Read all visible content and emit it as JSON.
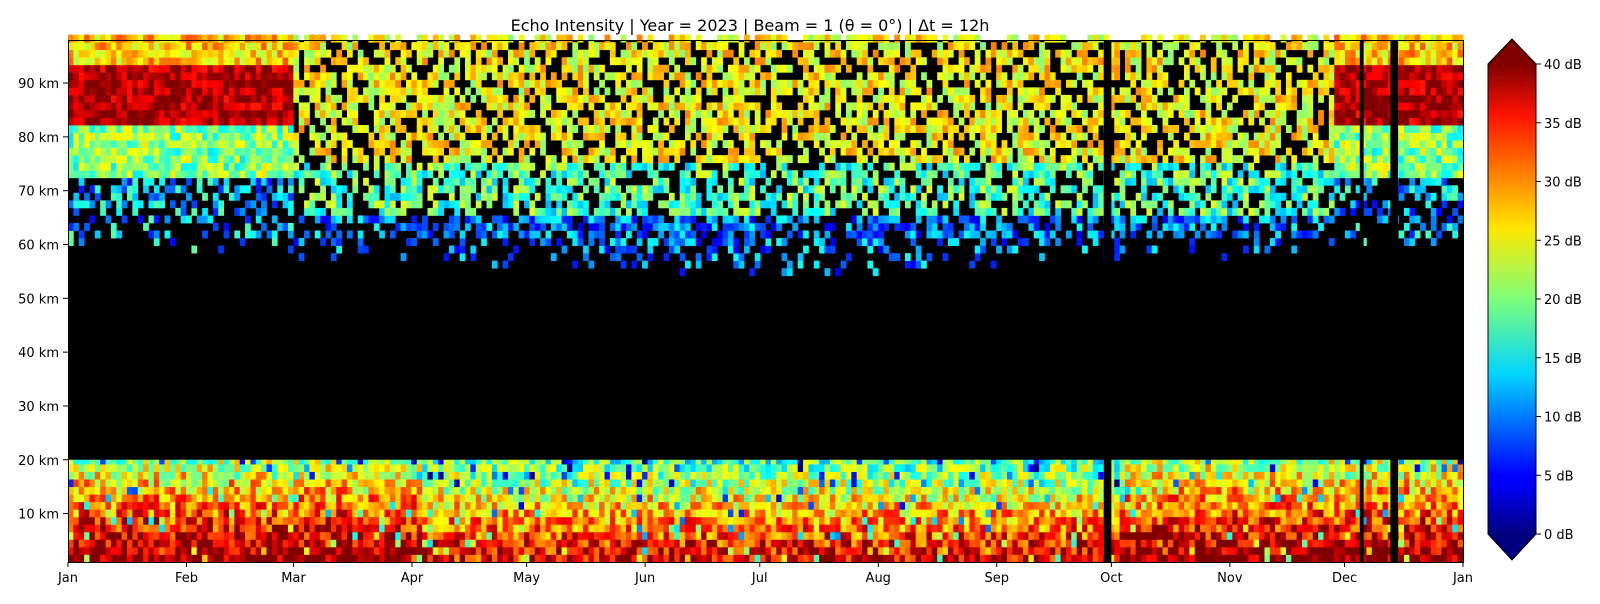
{
  "chart_data": {
    "type": "heatmap",
    "title": "Echo Intensity | Year = 2023 | Beam = 1 (θ = 0°) | Δt = 12h",
    "xlabel": "",
    "ylabel": "",
    "x_tick_labels": [
      "Jan",
      "Feb",
      "Mar",
      "Apr",
      "May",
      "Jun",
      "Jul",
      "Aug",
      "Sep",
      "Oct",
      "Nov",
      "Dec",
      "Jan"
    ],
    "x_range": [
      "2023-01-01",
      "2024-01-01"
    ],
    "time_step_hours": 12,
    "y_tick_values": [
      10,
      20,
      30,
      40,
      50,
      60,
      70,
      80,
      90
    ],
    "y_tick_labels": [
      "10 km",
      "20 km",
      "30 km",
      "40 km",
      "50 km",
      "60 km",
      "70 km",
      "80 km",
      "90 km"
    ],
    "y_range_km": [
      1,
      98
    ],
    "colormap": "jet",
    "colorbar": {
      "range_db": [
        0,
        40
      ],
      "tick_values": [
        0,
        5,
        10,
        15,
        20,
        25,
        30,
        35,
        40
      ],
      "tick_labels": [
        "0 dB",
        "5 dB",
        "10 dB",
        "15 dB",
        "20 dB",
        "25 dB",
        "30 dB",
        "35 dB",
        "40 dB"
      ],
      "extend": "both"
    },
    "missing_value_color": "#000000",
    "data_gaps": [
      {
        "from": "2023-09-29",
        "to": "2023-10-01",
        "alt_km": [
          1,
          98
        ]
      },
      {
        "from": "2023-12-05",
        "to": "2023-12-06",
        "alt_km": [
          1,
          98
        ]
      },
      {
        "from": "2023-12-13",
        "to": "2023-12-15",
        "alt_km": [
          1,
          98
        ]
      },
      {
        "from": "2023-01-01",
        "to": "2024-01-01",
        "alt_km": [
          20,
          50
        ]
      }
    ],
    "layers": [
      {
        "name": "lower",
        "alt_km": [
          1,
          20
        ],
        "pattern": "strong echoes 30–40 dB near ground, weakening to 15–20 dB at 20 km; stronger in Jan–Feb"
      },
      {
        "name": "upper winter",
        "months": [
          "Jan",
          "Feb",
          "Dec"
        ],
        "alt_km": [
          55,
          98
        ],
        "pattern": "intensity peaking ~38–40 dB around 85–90 km, 15–25 dB near 75–80 km, sparse 5–15 dB below 70 km"
      },
      {
        "name": "upper summer",
        "months": [
          "Mar",
          "Apr",
          "May",
          "Jun",
          "Jul",
          "Aug",
          "Sep",
          "Oct",
          "Nov"
        ],
        "alt_km": [
          50,
          98
        ],
        "pattern": "banded 20–30 dB returns above 60 km with 5–15 dB fringes, scattered dropouts"
      }
    ]
  }
}
